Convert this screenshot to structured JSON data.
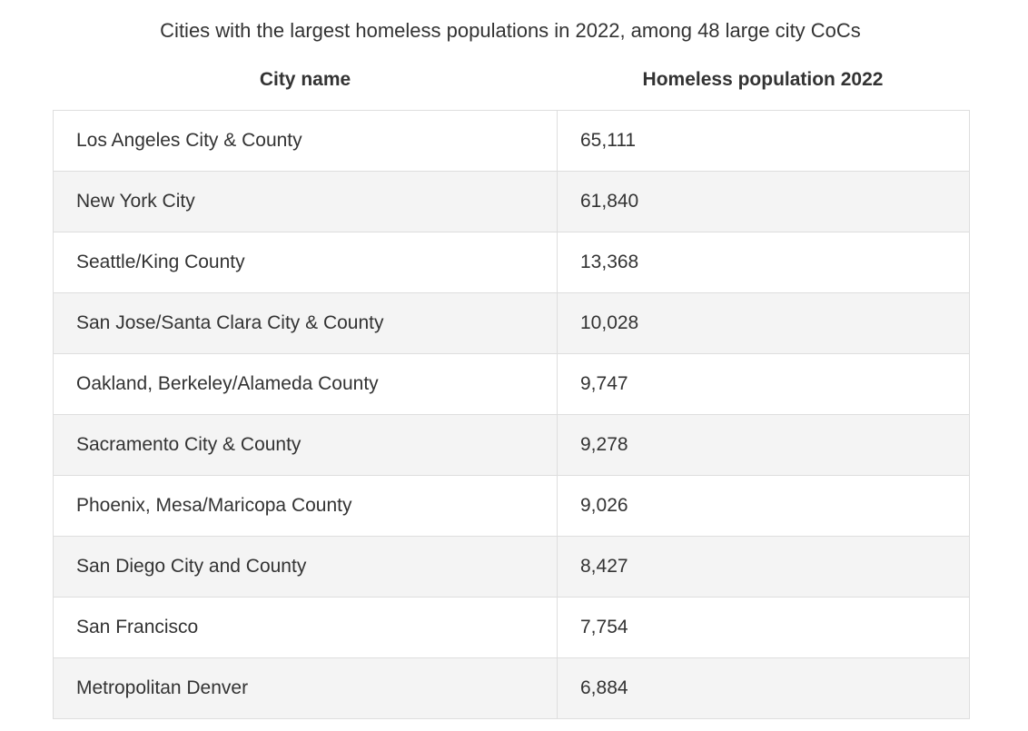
{
  "title": "Cities with the largest homeless populations in 2022, among 48 large city CoCs",
  "columns": [
    "City name",
    "Homeless population 2022"
  ],
  "rows": [
    {
      "city": "Los Angeles City & County",
      "value": "65,111"
    },
    {
      "city": "New York City",
      "value": "61,840"
    },
    {
      "city": "Seattle/King County",
      "value": "13,368"
    },
    {
      "city": "San Jose/Santa Clara City & County",
      "value": "10,028"
    },
    {
      "city": "Oakland, Berkeley/Alameda County",
      "value": "9,747"
    },
    {
      "city": "Sacramento City & County",
      "value": "9,278"
    },
    {
      "city": "Phoenix, Mesa/Maricopa County",
      "value": "9,026"
    },
    {
      "city": "San Diego City and County",
      "value": "8,427"
    },
    {
      "city": "San Francisco",
      "value": "7,754"
    },
    {
      "city": "Metropolitan Denver",
      "value": "6,884"
    }
  ],
  "chart_data": {
    "type": "table",
    "title": "Cities with the largest homeless populations in 2022, among 48 large city CoCs",
    "columns": [
      "City name",
      "Homeless population 2022"
    ],
    "categories": [
      "Los Angeles City & County",
      "New York City",
      "Seattle/King County",
      "San Jose/Santa Clara City & County",
      "Oakland, Berkeley/Alameda County",
      "Sacramento City & County",
      "Phoenix, Mesa/Maricopa County",
      "San Diego City and County",
      "San Francisco",
      "Metropolitan Denver"
    ],
    "values": [
      65111,
      61840,
      13368,
      10028,
      9747,
      9278,
      9026,
      8427,
      7754,
      6884
    ]
  },
  "colors": {
    "text": "#333333",
    "row_alt": "#f4f4f4",
    "row_base": "#ffffff",
    "border": "#dedede"
  }
}
